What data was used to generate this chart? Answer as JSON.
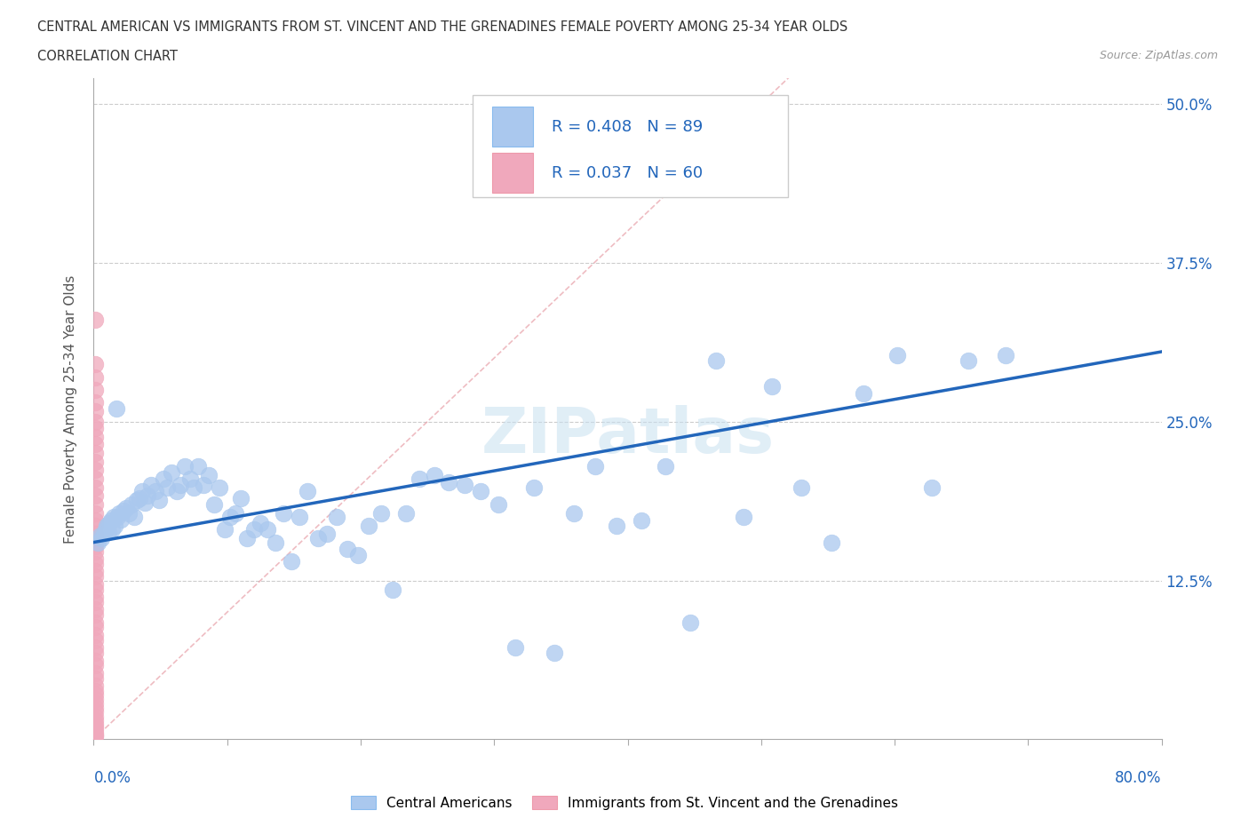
{
  "title_line1": "CENTRAL AMERICAN VS IMMIGRANTS FROM ST. VINCENT AND THE GRENADINES FEMALE POVERTY AMONG 25-34 YEAR OLDS",
  "title_line2": "CORRELATION CHART",
  "source_text": "Source: ZipAtlas.com",
  "ylabel": "Female Poverty Among 25-34 Year Olds",
  "watermark_text": "ZIPatlas",
  "blue_color": "#aac8ee",
  "pink_color": "#f0a8bc",
  "line_blue_color": "#2266bb",
  "ref_line_color": "#e8a0a8",
  "grid_color": "#cccccc",
  "text_blue": "#2266bb",
  "text_dark": "#333333",
  "source_color": "#999999",
  "xlim": [
    0.0,
    0.8
  ],
  "ylim": [
    0.0,
    0.52
  ],
  "y_ticks": [
    0.0,
    0.125,
    0.25,
    0.375,
    0.5
  ],
  "y_tick_labels": [
    "",
    "12.5%",
    "25.0%",
    "37.5%",
    "50.0%"
  ],
  "ca_x": [
    0.003,
    0.005,
    0.006,
    0.008,
    0.009,
    0.01,
    0.011,
    0.012,
    0.013,
    0.014,
    0.015,
    0.016,
    0.017,
    0.018,
    0.019,
    0.02,
    0.022,
    0.024,
    0.026,
    0.028,
    0.03,
    0.032,
    0.034,
    0.036,
    0.038,
    0.04,
    0.043,
    0.046,
    0.049,
    0.052,
    0.055,
    0.058,
    0.062,
    0.065,
    0.068,
    0.072,
    0.075,
    0.078,
    0.082,
    0.086,
    0.09,
    0.094,
    0.098,
    0.102,
    0.106,
    0.11,
    0.115,
    0.12,
    0.125,
    0.13,
    0.136,
    0.142,
    0.148,
    0.154,
    0.16,
    0.168,
    0.175,
    0.182,
    0.19,
    0.198,
    0.206,
    0.215,
    0.224,
    0.234,
    0.244,
    0.255,
    0.266,
    0.278,
    0.29,
    0.303,
    0.316,
    0.33,
    0.345,
    0.36,
    0.376,
    0.392,
    0.41,
    0.428,
    0.447,
    0.466,
    0.487,
    0.508,
    0.53,
    0.553,
    0.577,
    0.602,
    0.628,
    0.655,
    0.683
  ],
  "ca_y": [
    0.155,
    0.16,
    0.158,
    0.162,
    0.165,
    0.168,
    0.163,
    0.17,
    0.172,
    0.165,
    0.175,
    0.168,
    0.26,
    0.175,
    0.178,
    0.173,
    0.18,
    0.182,
    0.178,
    0.185,
    0.175,
    0.188,
    0.19,
    0.195,
    0.186,
    0.192,
    0.2,
    0.195,
    0.188,
    0.205,
    0.198,
    0.21,
    0.195,
    0.2,
    0.215,
    0.205,
    0.198,
    0.215,
    0.2,
    0.208,
    0.185,
    0.198,
    0.165,
    0.175,
    0.178,
    0.19,
    0.158,
    0.165,
    0.17,
    0.165,
    0.155,
    0.178,
    0.14,
    0.175,
    0.195,
    0.158,
    0.162,
    0.175,
    0.15,
    0.145,
    0.168,
    0.178,
    0.118,
    0.178,
    0.205,
    0.208,
    0.202,
    0.2,
    0.195,
    0.185,
    0.072,
    0.198,
    0.068,
    0.178,
    0.215,
    0.168,
    0.172,
    0.215,
    0.092,
    0.298,
    0.175,
    0.278,
    0.198,
    0.155,
    0.272,
    0.302,
    0.198,
    0.298,
    0.302
  ],
  "sv_x": [
    0.001,
    0.001,
    0.001,
    0.001,
    0.001,
    0.001,
    0.001,
    0.001,
    0.001,
    0.001,
    0.001,
    0.001,
    0.001,
    0.001,
    0.001,
    0.001,
    0.001,
    0.001,
    0.001,
    0.001,
    0.001,
    0.001,
    0.001,
    0.001,
    0.001,
    0.001,
    0.001,
    0.001,
    0.001,
    0.001,
    0.001,
    0.001,
    0.001,
    0.001,
    0.001,
    0.001,
    0.001,
    0.001,
    0.001,
    0.001,
    0.001,
    0.001,
    0.001,
    0.001,
    0.001,
    0.001,
    0.001,
    0.001,
    0.001,
    0.001,
    0.001,
    0.001,
    0.001,
    0.001,
    0.001,
    0.001,
    0.001,
    0.001,
    0.001,
    0.001
  ],
  "sv_y": [
    0.33,
    0.295,
    0.285,
    0.275,
    0.265,
    0.258,
    0.25,
    0.245,
    0.238,
    0.232,
    0.225,
    0.218,
    0.212,
    0.205,
    0.198,
    0.192,
    0.185,
    0.178,
    0.172,
    0.168,
    0.162,
    0.158,
    0.152,
    0.148,
    0.142,
    0.138,
    0.132,
    0.128,
    0.122,
    0.118,
    0.112,
    0.108,
    0.102,
    0.098,
    0.092,
    0.088,
    0.082,
    0.078,
    0.072,
    0.068,
    0.062,
    0.058,
    0.052,
    0.048,
    0.042,
    0.038,
    0.035,
    0.032,
    0.028,
    0.025,
    0.022,
    0.018,
    0.015,
    0.012,
    0.01,
    0.008,
    0.005,
    0.004,
    0.003,
    0.002
  ],
  "ref_line_x": [
    0.0,
    0.8
  ],
  "ref_line_y": [
    0.0,
    0.8
  ],
  "blue_line_x0": 0.0,
  "blue_line_x1": 0.8,
  "blue_line_y0": 0.155,
  "blue_line_y1": 0.305
}
